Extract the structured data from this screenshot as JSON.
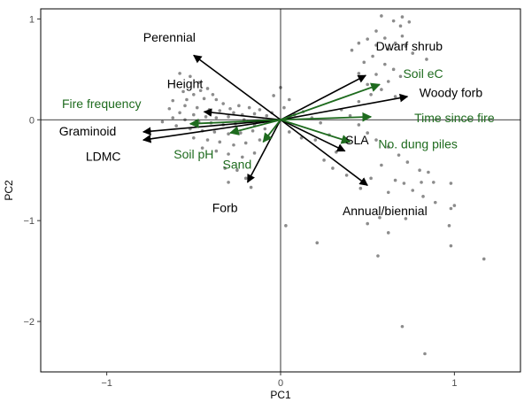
{
  "chart_data": {
    "type": "scatter",
    "subtype": "biplot",
    "title": "",
    "xlabel": "PC1",
    "ylabel": "PC2",
    "xlim": [
      -1.38,
      1.38
    ],
    "ylim": [
      -2.5,
      1.1
    ],
    "x_ticks": [
      -1,
      0,
      1
    ],
    "x_tick_labels": [
      "−1",
      "0",
      "1"
    ],
    "y_ticks": [
      -2,
      -1,
      0,
      1
    ],
    "y_tick_labels": [
      "−2",
      "−1",
      "0",
      "1"
    ],
    "grid": false,
    "legend": "none",
    "colors": {
      "points": "#8c8c8c",
      "trait_vectors": "#000000",
      "env_vectors": "#1e6b1e",
      "frame": "#000000",
      "zero_lines": "#000000"
    },
    "points": [
      [
        0.58,
        1.03
      ],
      [
        0.65,
        0.98
      ],
      [
        0.7,
        1.02
      ],
      [
        0.74,
        0.97
      ],
      [
        0.69,
        0.93
      ],
      [
        0.55,
        0.88
      ],
      [
        0.7,
        0.83
      ],
      [
        0.5,
        0.8
      ],
      [
        0.6,
        0.81
      ],
      [
        0.66,
        0.76
      ],
      [
        0.45,
        0.76
      ],
      [
        0.55,
        0.74
      ],
      [
        0.72,
        0.73
      ],
      [
        0.62,
        0.7
      ],
      [
        0.41,
        0.69
      ],
      [
        0.76,
        0.66
      ],
      [
        0.53,
        0.63
      ],
      [
        0.84,
        0.6
      ],
      [
        0.48,
        0.57
      ],
      [
        0.6,
        0.55
      ],
      [
        0.65,
        0.5
      ],
      [
        0.55,
        0.45
      ],
      [
        0.45,
        0.46
      ],
      [
        0.69,
        0.43
      ],
      [
        0.62,
        0.38
      ],
      [
        0.5,
        0.35
      ],
      [
        0.58,
        0.3
      ],
      [
        0.52,
        0.25
      ],
      [
        0.66,
        0.23
      ],
      [
        0.45,
        0.18
      ],
      [
        -0.58,
        0.46
      ],
      [
        -0.52,
        0.43
      ],
      [
        -0.47,
        0.37
      ],
      [
        -0.42,
        0.31
      ],
      [
        -0.56,
        0.28
      ],
      [
        -0.5,
        0.25
      ],
      [
        -0.44,
        0.21
      ],
      [
        -0.37,
        0.2
      ],
      [
        -0.62,
        0.19
      ],
      [
        -0.55,
        0.14
      ],
      [
        -0.48,
        0.12
      ],
      [
        -0.41,
        0.1
      ],
      [
        -0.35,
        0.09
      ],
      [
        -0.29,
        0.11
      ],
      [
        -0.24,
        0.14
      ],
      [
        -0.18,
        0.12
      ],
      [
        -0.12,
        0.1
      ],
      [
        -0.58,
        0.07
      ],
      [
        -0.5,
        0.05
      ],
      [
        -0.43,
        0.03
      ],
      [
        -0.37,
        0.02
      ],
      [
        -0.3,
        0.03
      ],
      [
        -0.22,
        0.05
      ],
      [
        -0.15,
        0.06
      ],
      [
        -0.08,
        0.04
      ],
      [
        -0.55,
        0.0
      ],
      [
        -0.47,
        -0.02
      ],
      [
        -0.4,
        -0.03
      ],
      [
        -0.33,
        -0.05
      ],
      [
        -0.26,
        -0.04
      ],
      [
        -0.19,
        -0.02
      ],
      [
        -0.1,
        -0.01
      ],
      [
        -0.6,
        -0.06
      ],
      [
        -0.52,
        -0.09
      ],
      [
        -0.45,
        -0.11
      ],
      [
        -0.38,
        -0.12
      ],
      [
        -0.3,
        -0.14
      ],
      [
        -0.23,
        -0.13
      ],
      [
        -0.16,
        -0.11
      ],
      [
        -0.09,
        -0.09
      ],
      [
        -0.5,
        -0.18
      ],
      [
        -0.42,
        -0.2
      ],
      [
        -0.35,
        -0.22
      ],
      [
        -0.27,
        -0.25
      ],
      [
        -0.2,
        -0.23
      ],
      [
        -0.12,
        -0.2
      ],
      [
        -0.45,
        -0.28
      ],
      [
        -0.37,
        -0.31
      ],
      [
        -0.3,
        -0.34
      ],
      [
        -0.22,
        -0.37
      ],
      [
        -0.15,
        -0.33
      ],
      [
        -0.32,
        -0.48
      ],
      [
        -0.25,
        -0.5
      ],
      [
        -0.2,
        -0.58
      ],
      [
        -0.17,
        -0.67
      ],
      [
        -0.3,
        -0.62
      ],
      [
        -0.62,
        0.02
      ],
      [
        -0.68,
        -0.02
      ],
      [
        -0.64,
        0.11
      ],
      [
        -0.54,
        0.2
      ],
      [
        -0.46,
        0.29
      ],
      [
        -0.39,
        0.25
      ],
      [
        -0.33,
        0.16
      ],
      [
        -0.27,
        0.07
      ],
      [
        -0.21,
        0.0
      ],
      [
        -0.15,
        -0.05
      ],
      [
        -0.05,
        0.07
      ],
      [
        0.02,
        0.12
      ],
      [
        0.08,
        0.05
      ],
      [
        0.13,
        0.08
      ],
      [
        0.18,
        0.02
      ],
      [
        0.23,
        -0.03
      ],
      [
        0.05,
        -0.12
      ],
      [
        0.12,
        -0.18
      ],
      [
        0.2,
        -0.2
      ],
      [
        -0.04,
        0.24
      ],
      [
        0.05,
        0.2
      ],
      [
        0.0,
        0.32
      ],
      [
        0.35,
        0.1
      ],
      [
        0.4,
        0.04
      ],
      [
        0.45,
        -0.05
      ],
      [
        0.5,
        -0.13
      ],
      [
        0.55,
        -0.2
      ],
      [
        0.62,
        -0.27
      ],
      [
        0.68,
        -0.35
      ],
      [
        0.73,
        -0.42
      ],
      [
        0.8,
        -0.5
      ],
      [
        0.58,
        -0.45
      ],
      [
        0.66,
        -0.6
      ],
      [
        0.71,
        -0.63
      ],
      [
        0.76,
        -0.7
      ],
      [
        0.62,
        -0.72
      ],
      [
        0.85,
        -0.52
      ],
      [
        0.82,
        -0.76
      ],
      [
        0.52,
        -0.58
      ],
      [
        0.46,
        -0.68
      ],
      [
        0.38,
        -0.55
      ],
      [
        0.3,
        -0.48
      ],
      [
        0.25,
        -0.4
      ],
      [
        0.32,
        -0.32
      ],
      [
        0.38,
        -0.22
      ],
      [
        0.28,
        -0.15
      ],
      [
        0.81,
        -0.62
      ],
      [
        0.88,
        -0.62
      ],
      [
        0.89,
        -0.82
      ],
      [
        0.98,
        -0.63
      ],
      [
        1.0,
        -0.85
      ],
      [
        0.98,
        -0.88
      ],
      [
        0.97,
        -1.05
      ],
      [
        0.98,
        -1.25
      ],
      [
        1.17,
        -1.38
      ],
      [
        0.57,
        -0.97
      ],
      [
        0.5,
        -1.03
      ],
      [
        0.62,
        -1.12
      ],
      [
        0.72,
        -0.98
      ],
      [
        0.03,
        -1.05
      ],
      [
        0.21,
        -1.22
      ],
      [
        0.56,
        -1.35
      ],
      [
        0.7,
        -2.05
      ],
      [
        0.83,
        -2.32
      ]
    ],
    "vectors": [
      {
        "name": "Perennial",
        "group": "trait",
        "x": -0.5,
        "y": 0.64
      },
      {
        "name": "Height",
        "group": "trait",
        "x": -0.44,
        "y": 0.08
      },
      {
        "name": "Graminoid",
        "group": "trait",
        "x": -0.79,
        "y": -0.12
      },
      {
        "name": "LDMC",
        "group": "trait",
        "x": -0.79,
        "y": -0.2
      },
      {
        "name": "Forb",
        "group": "trait",
        "x": -0.19,
        "y": -0.62
      },
      {
        "name": "SLA",
        "group": "trait",
        "x": 0.37,
        "y": -0.31
      },
      {
        "name": "Annual/biennial",
        "group": "trait",
        "x": 0.5,
        "y": -0.65
      },
      {
        "name": "Dwarf shrub",
        "group": "trait",
        "x": 0.49,
        "y": 0.44
      },
      {
        "name": "Woody forb",
        "group": "trait",
        "x": 0.73,
        "y": 0.23
      },
      {
        "name": "Fire frequency",
        "group": "environment",
        "x": -0.52,
        "y": -0.04
      },
      {
        "name": "Soil pH",
        "group": "environment",
        "x": -0.29,
        "y": -0.13
      },
      {
        "name": "Sand",
        "group": "environment",
        "x": -0.1,
        "y": -0.22
      },
      {
        "name": "Soil eC",
        "group": "environment",
        "x": 0.57,
        "y": 0.35
      },
      {
        "name": "Time since fire",
        "group": "environment",
        "x": 0.52,
        "y": 0.03
      },
      {
        "name": "No. dung piles",
        "group": "environment",
        "x": 0.4,
        "y": -0.22
      }
    ],
    "labels": [
      {
        "text": "Perennial",
        "group": "trait",
        "x": -0.64,
        "y": 0.82
      },
      {
        "text": "Height",
        "group": "trait",
        "x": -0.55,
        "y": 0.36
      },
      {
        "text": "Graminoid",
        "group": "trait",
        "x": -1.11,
        "y": -0.11
      },
      {
        "text": "LDMC",
        "group": "trait",
        "x": -1.02,
        "y": -0.36
      },
      {
        "text": "Forb",
        "group": "trait",
        "x": -0.32,
        "y": -0.87
      },
      {
        "text": "SLA",
        "group": "trait",
        "x": 0.44,
        "y": -0.2
      },
      {
        "text": "Annual/biennial",
        "group": "trait",
        "x": 0.6,
        "y": -0.9
      },
      {
        "text": "Dwarf shrub",
        "group": "trait",
        "x": 0.74,
        "y": 0.73
      },
      {
        "text": "Woody forb",
        "group": "trait",
        "x": 0.98,
        "y": 0.27
      },
      {
        "text": "Fire frequency",
        "group": "environment",
        "x": -1.03,
        "y": 0.16
      },
      {
        "text": "Soil pH",
        "group": "environment",
        "x": -0.5,
        "y": -0.34
      },
      {
        "text": "Sand",
        "group": "environment",
        "x": -0.25,
        "y": -0.44
      },
      {
        "text": "Soil eC",
        "group": "environment",
        "x": 0.82,
        "y": 0.46
      },
      {
        "text": "Time since fire",
        "group": "environment",
        "x": 1.0,
        "y": 0.02
      },
      {
        "text": "No. dung piles",
        "group": "environment",
        "x": 0.79,
        "y": -0.24
      }
    ]
  }
}
